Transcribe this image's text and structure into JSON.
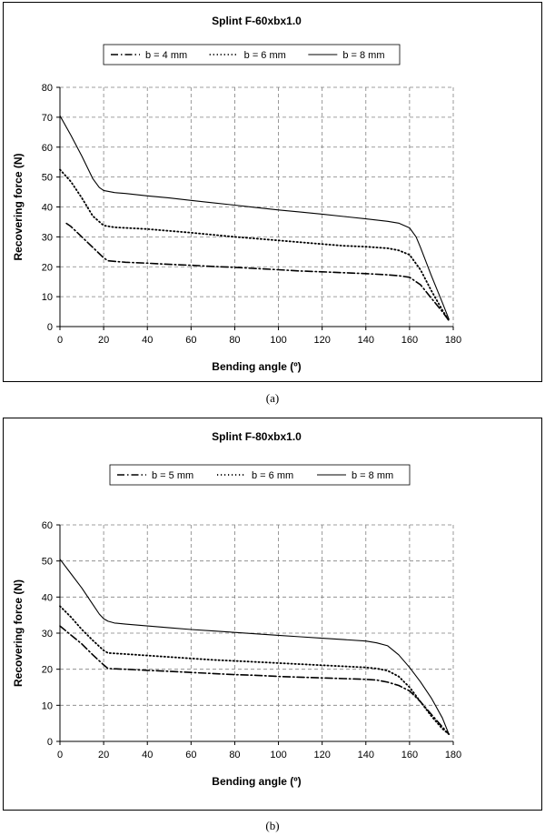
{
  "captions": [
    "(a)",
    "(b)"
  ],
  "chart_data": [
    {
      "type": "line",
      "title": "Splint F-60xbx1.0",
      "xlabel": "Bending angle (º)",
      "ylabel": "Recovering force (N)",
      "xlim": [
        0,
        180
      ],
      "ylim": [
        0,
        80
      ],
      "xticks": [
        0,
        20,
        40,
        60,
        80,
        100,
        120,
        140,
        160,
        180
      ],
      "yticks": [
        0,
        10,
        20,
        30,
        40,
        50,
        60,
        70,
        80
      ],
      "grid": true,
      "legend_position": "top",
      "series": [
        {
          "name": "b = 4 mm",
          "style": "dashdot",
          "x": [
            3,
            5,
            10,
            15,
            20,
            22,
            30,
            40,
            50,
            60,
            70,
            80,
            90,
            100,
            110,
            120,
            130,
            140,
            150,
            155,
            160,
            165,
            170,
            175,
            178
          ],
          "y": [
            34.5,
            33.5,
            30,
            26.5,
            23,
            22,
            21.5,
            21.2,
            20.8,
            20.5,
            20.1,
            19.8,
            19.4,
            19,
            18.6,
            18.3,
            18,
            17.7,
            17.3,
            17,
            16.5,
            14,
            9.5,
            5,
            2
          ]
        },
        {
          "name": "b = 6 mm",
          "style": "dotted",
          "x": [
            0,
            5,
            10,
            15,
            20,
            25,
            30,
            40,
            50,
            60,
            70,
            80,
            90,
            100,
            110,
            120,
            130,
            140,
            150,
            155,
            160,
            165,
            170,
            175,
            178
          ],
          "y": [
            52.5,
            48.5,
            43,
            37,
            33.8,
            33.2,
            33,
            32.6,
            32,
            31.4,
            30.7,
            30,
            29.4,
            28.8,
            28.2,
            27.6,
            27,
            26.7,
            26.2,
            25.5,
            24,
            19,
            12,
            5.5,
            2
          ]
        },
        {
          "name": "b = 8 mm",
          "style": "solid",
          "x": [
            0,
            5,
            10,
            15,
            18,
            20,
            25,
            30,
            40,
            50,
            60,
            70,
            80,
            90,
            100,
            110,
            120,
            130,
            140,
            150,
            155,
            160,
            163,
            165,
            170,
            175,
            178
          ],
          "y": [
            70.5,
            64,
            57,
            49.5,
            46.5,
            45.5,
            44.8,
            44.5,
            43.7,
            43,
            42.2,
            41.4,
            40.6,
            39.8,
            39,
            38.3,
            37.6,
            36.8,
            36,
            35.2,
            34.6,
            33,
            30,
            26.5,
            17,
            8,
            2.5
          ]
        }
      ]
    },
    {
      "type": "line",
      "title": "Splint F-80xbx1.0",
      "xlabel": "Bending angle (º)",
      "ylabel": "Recovering force (N)",
      "xlim": [
        0,
        180
      ],
      "ylim": [
        0,
        60
      ],
      "xticks": [
        0,
        20,
        40,
        60,
        80,
        100,
        120,
        140,
        160,
        180
      ],
      "yticks": [
        0,
        10,
        20,
        30,
        40,
        50,
        60
      ],
      "grid": true,
      "legend_position": "top",
      "series": [
        {
          "name": "b = 5 mm",
          "style": "dashdot",
          "x": [
            0,
            5,
            10,
            15,
            20,
            22,
            30,
            40,
            50,
            60,
            70,
            80,
            90,
            100,
            110,
            120,
            130,
            140,
            145,
            150,
            155,
            160,
            165,
            170,
            175,
            178
          ],
          "y": [
            32,
            29.5,
            27,
            24,
            21.2,
            20.2,
            20,
            19.7,
            19.4,
            19.1,
            18.8,
            18.5,
            18.3,
            18,
            17.8,
            17.6,
            17.4,
            17.2,
            17,
            16.4,
            15.5,
            14,
            11,
            7.5,
            4,
            2
          ]
        },
        {
          "name": "b = 6 mm",
          "style": "dotted",
          "x": [
            0,
            5,
            10,
            15,
            20,
            22,
            30,
            40,
            50,
            60,
            70,
            80,
            90,
            100,
            110,
            120,
            130,
            140,
            145,
            150,
            155,
            160,
            165,
            170,
            175,
            178
          ],
          "y": [
            37.5,
            34.5,
            31,
            28,
            25.2,
            24.5,
            24.2,
            23.8,
            23.4,
            23,
            22.6,
            22.3,
            22,
            21.7,
            21.4,
            21.1,
            20.8,
            20.5,
            20.2,
            19.6,
            18,
            15,
            11,
            7,
            3.5,
            2
          ]
        },
        {
          "name": "b = 8 mm",
          "style": "solid",
          "x": [
            0,
            5,
            10,
            15,
            18,
            20,
            22,
            25,
            30,
            40,
            50,
            60,
            70,
            80,
            90,
            100,
            110,
            120,
            130,
            140,
            145,
            150,
            155,
            160,
            165,
            170,
            175,
            178
          ],
          "y": [
            50.5,
            46.5,
            42.5,
            38,
            35.3,
            34,
            33.3,
            32.8,
            32.5,
            32,
            31.5,
            31,
            30.6,
            30.2,
            29.8,
            29.4,
            29,
            28.6,
            28.2,
            27.8,
            27.3,
            26.5,
            24,
            20.5,
            16.5,
            12,
            6.5,
            2
          ]
        }
      ]
    }
  ]
}
